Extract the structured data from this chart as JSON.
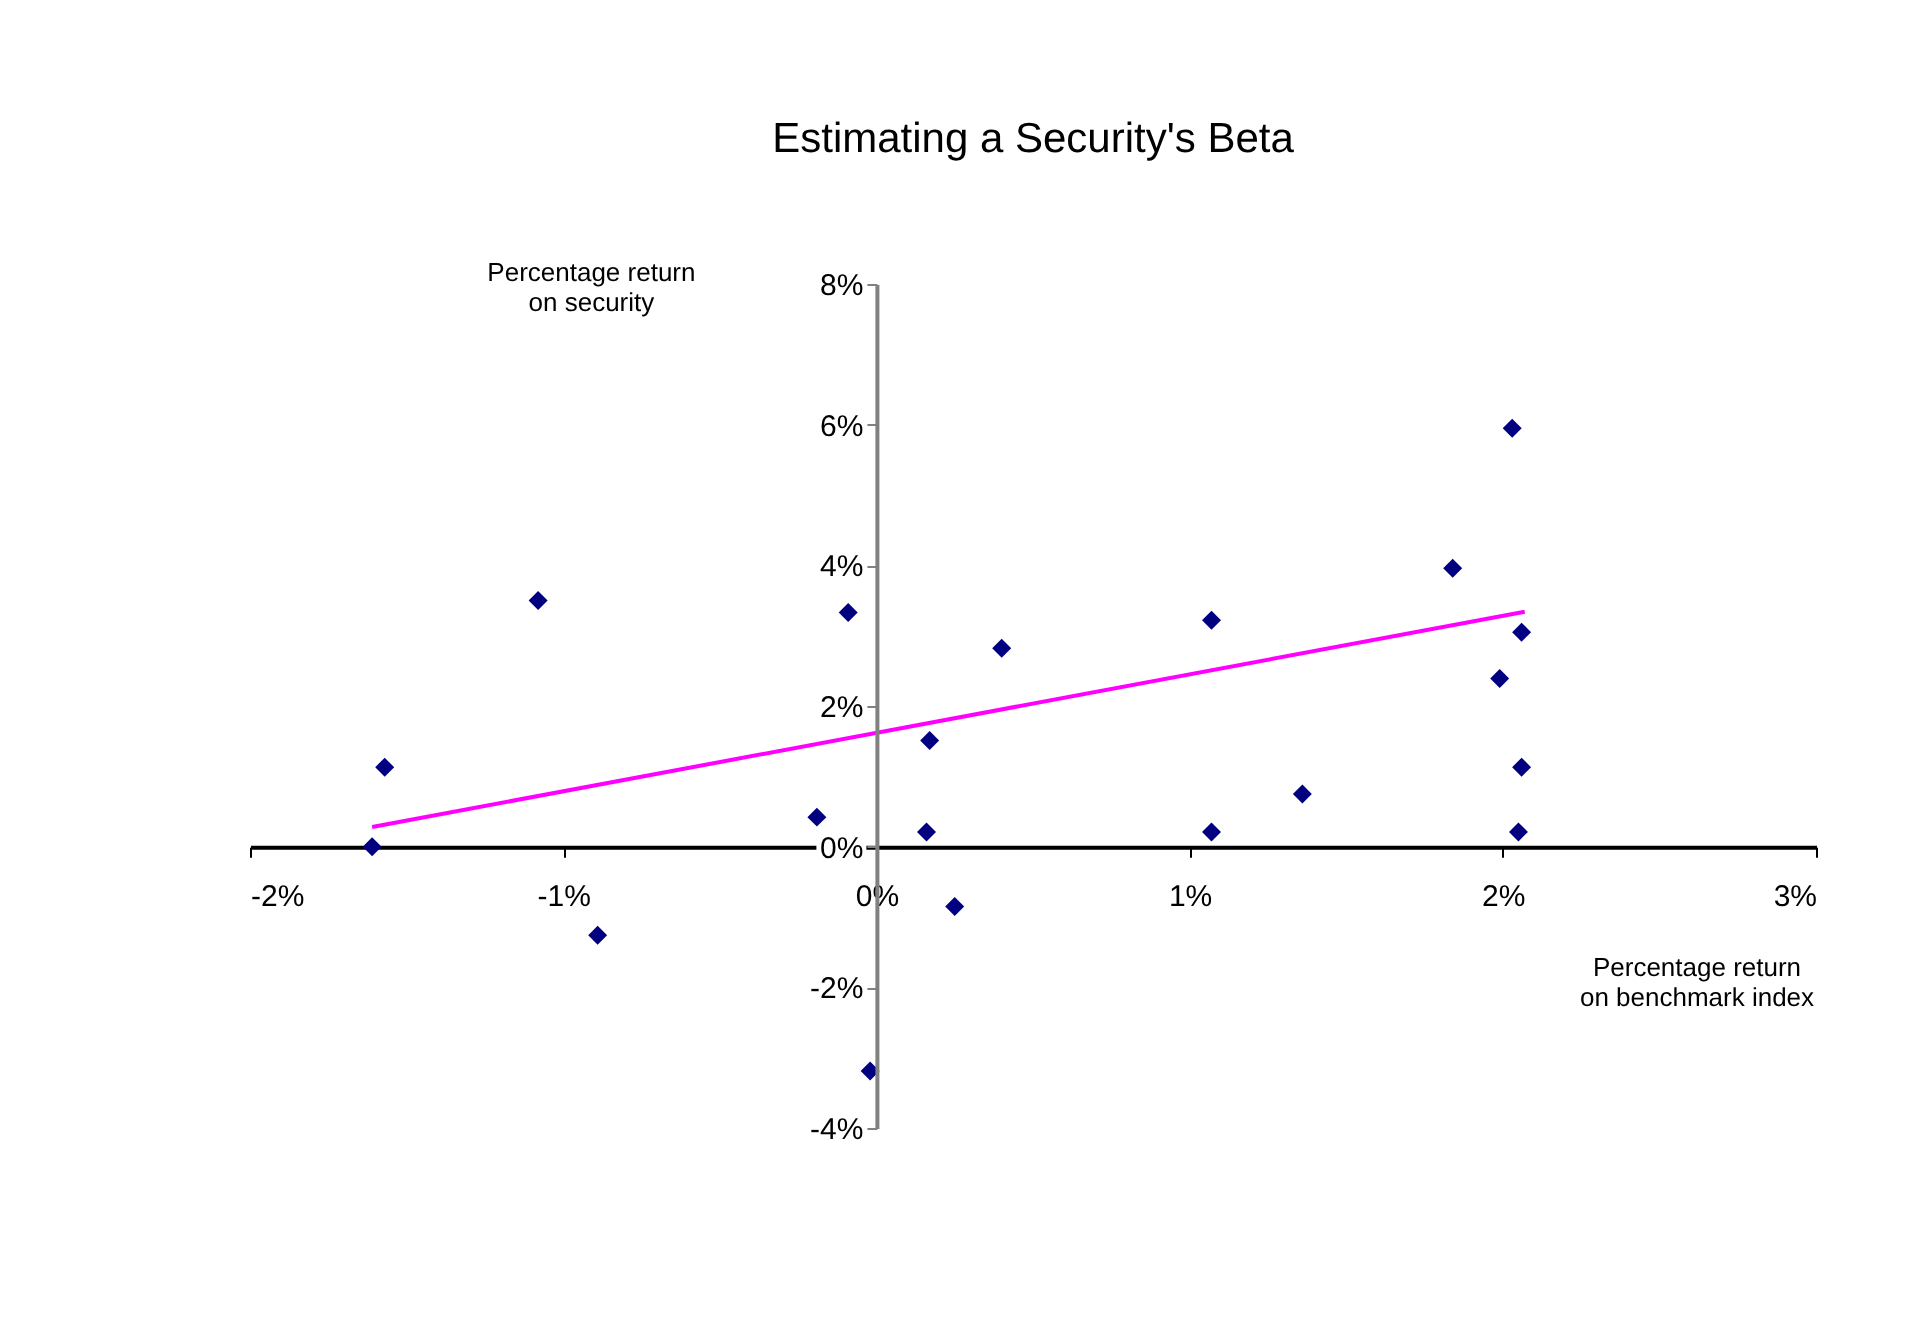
{
  "chart_data": {
    "type": "scatter",
    "title": "Estimating a Security's Beta",
    "xlabel": "Percentage return\non benchmark index",
    "ylabel": "Percentage return\non security",
    "xlim": [
      -2,
      3
    ],
    "ylim": [
      -4,
      8
    ],
    "xticks": [
      {
        "value": -2,
        "label": "-2%"
      },
      {
        "value": -1,
        "label": "-1%"
      },
      {
        "value": 0,
        "label": "0%"
      },
      {
        "value": 1,
        "label": "1%"
      },
      {
        "value": 2,
        "label": "2%"
      },
      {
        "value": 3,
        "label": "3%"
      }
    ],
    "yticks": [
      {
        "value": -4,
        "label": "-4%"
      },
      {
        "value": -2,
        "label": "-2%"
      },
      {
        "value": 0,
        "label": "0%"
      },
      {
        "value": 2,
        "label": "2%"
      },
      {
        "value": 4,
        "label": "4%"
      },
      {
        "value": 6,
        "label": "6%"
      },
      {
        "value": 8,
        "label": "8%"
      }
    ],
    "grid": false,
    "series": [
      {
        "type": "scatter",
        "color": "#000080",
        "marker": "diamond",
        "x": [
          -1.61,
          -1.57,
          -1.08,
          -0.89,
          -0.19,
          -0.09,
          -0.02,
          0.17,
          0.16,
          0.25,
          0.4,
          1.07,
          1.07,
          1.36,
          1.84,
          2.03,
          1.99,
          2.06,
          2.06,
          2.05
        ],
        "values": [
          0.0,
          1.13,
          3.5,
          -1.26,
          0.42,
          3.33,
          -3.19,
          1.51,
          0.21,
          -0.85,
          2.82,
          3.22,
          0.21,
          0.75,
          3.96,
          5.95,
          2.39,
          3.05,
          1.13,
          0.21
        ]
      },
      {
        "type": "line",
        "color": "#ff00ff",
        "x": [
          -1.61,
          2.07
        ],
        "values": [
          0.28,
          3.34
        ]
      }
    ]
  }
}
